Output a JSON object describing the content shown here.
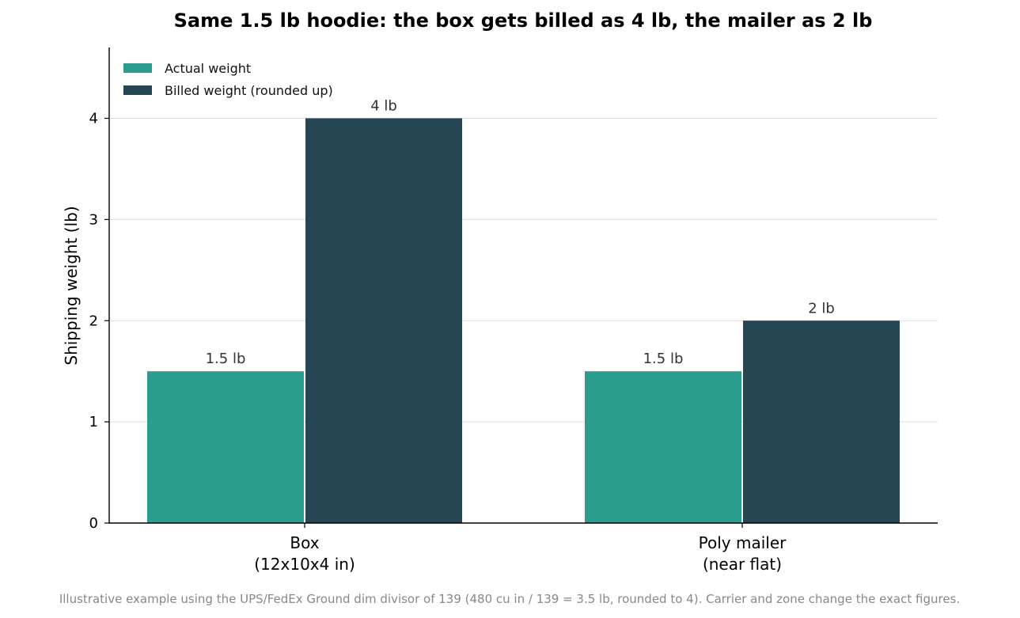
{
  "chart_data": {
    "type": "bar",
    "title": "Same 1.5 lb hoodie: the box gets billed as 4 lb, the mailer as 2 lb",
    "ylabel": "Shipping weight (lb)",
    "xlabel": "",
    "categories": [
      [
        "Box",
        "(12x10x4 in)"
      ],
      [
        "Poly mailer",
        "(near flat)"
      ]
    ],
    "series": [
      {
        "name": "Actual weight",
        "color": "#2a9d8f",
        "values": [
          1.5,
          1.5
        ],
        "labels": [
          "1.5 lb",
          "1.5 lb"
        ]
      },
      {
        "name": "Billed weight (rounded up)",
        "color": "#264653",
        "values": [
          4,
          2
        ],
        "labels": [
          "4 lb",
          "2 lb"
        ]
      }
    ],
    "ylim": [
      0,
      4.7
    ],
    "yticks": [
      0,
      1,
      2,
      3,
      4
    ],
    "grid": "horizontal",
    "legend": "top-left",
    "footnote": "Illustrative example using the UPS/FedEx Ground dim divisor of 139 (480 cu in / 139 = 3.5 lb, rounded to 4). Carrier and zone change the exact figures."
  }
}
